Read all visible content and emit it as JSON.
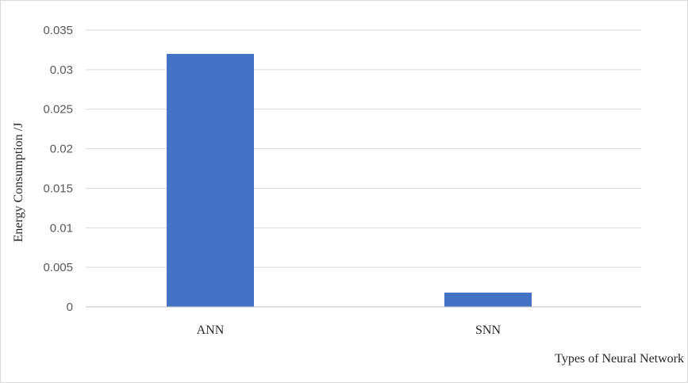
{
  "chart_data": {
    "type": "bar",
    "categories": [
      "ANN",
      "SNN"
    ],
    "values": [
      0.032,
      0.0018
    ],
    "xlabel": "Types of Neural Network",
    "ylabel": "Energy Consumption /J",
    "ylim": [
      0,
      0.035
    ],
    "yticks": [
      "0",
      "0.005",
      "0.01",
      "0.015",
      "0.02",
      "0.025",
      "0.03",
      "0.035"
    ],
    "grid": true,
    "legend": "none",
    "colors": {
      "bar": "#4472C4",
      "grid": "#d9d9d9",
      "axis": "#bfbfbf"
    }
  }
}
